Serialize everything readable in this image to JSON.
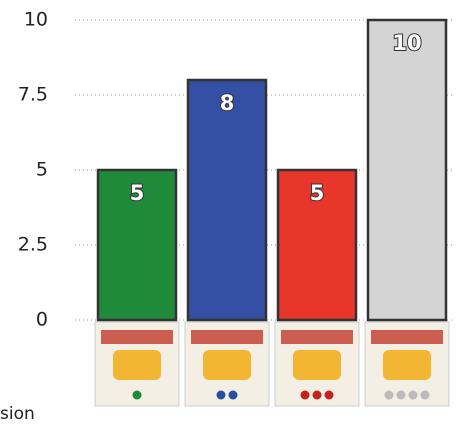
{
  "chart_data": {
    "type": "bar",
    "categories": [
      null,
      null,
      null,
      null
    ],
    "values": [
      5,
      8,
      5,
      10
    ],
    "colors": [
      "#1f8a3a",
      "#3450a5",
      "#e8372a",
      "#d4d4d4"
    ],
    "ylim": [
      0,
      10
    ],
    "yticks": [
      0,
      2.5,
      5,
      7.5,
      10
    ],
    "grid": true,
    "footnote": "sion"
  }
}
